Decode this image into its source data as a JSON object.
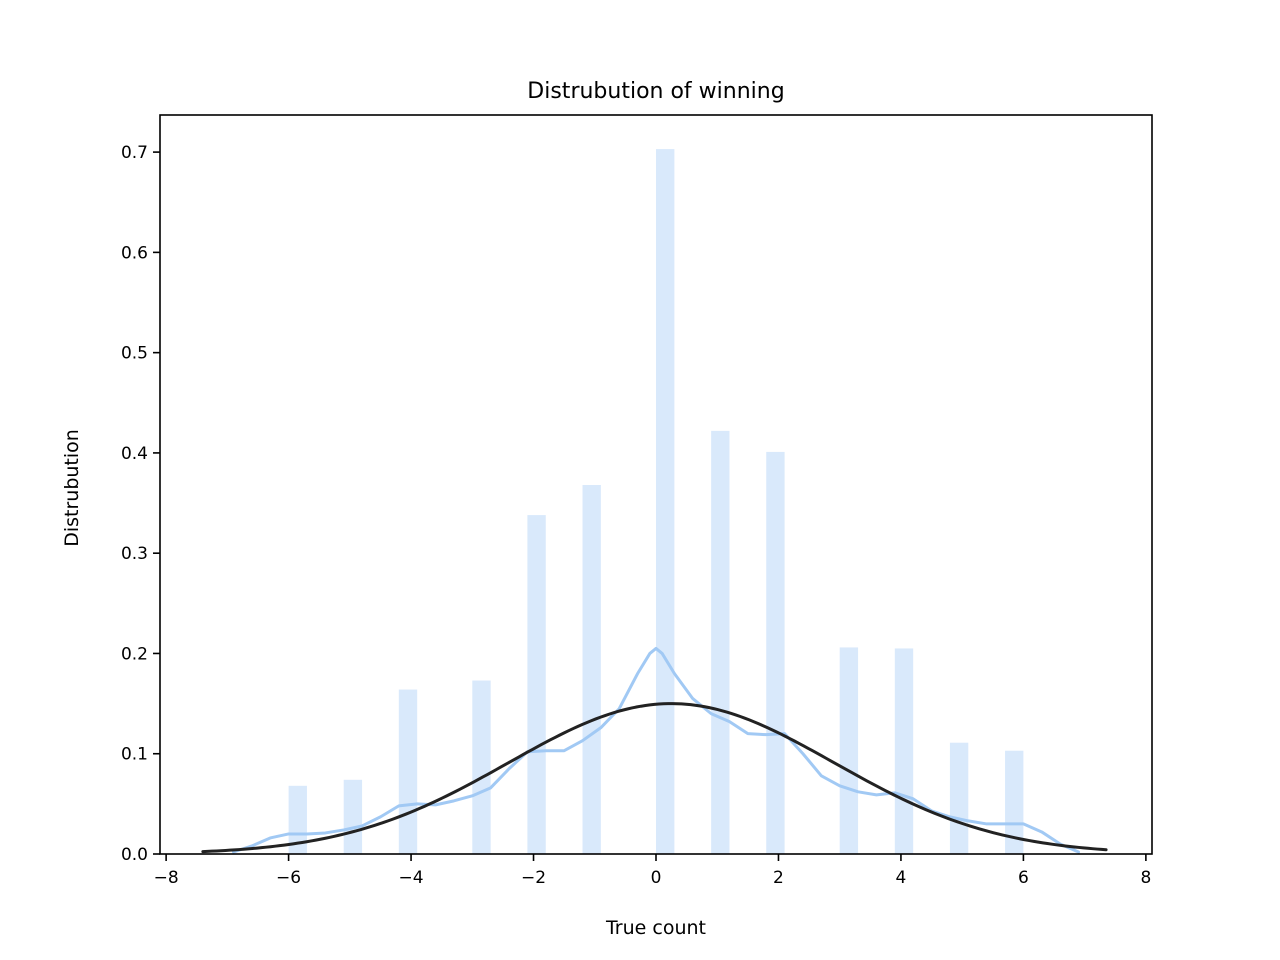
{
  "chart_data": {
    "type": "bar",
    "title": "Distrubution of winning",
    "xlabel": "True count",
    "ylabel": "Distrubution",
    "xlim": [
      -8.1,
      8.1
    ],
    "ylim": [
      0,
      0.737
    ],
    "xticks": [
      -8,
      -6,
      -4,
      -2,
      0,
      2,
      4,
      6,
      8
    ],
    "xtick_labels": [
      "−8",
      "−6",
      "−4",
      "−2",
      "0",
      "2",
      "4",
      "6",
      "8"
    ],
    "yticks": [
      0.0,
      0.1,
      0.2,
      0.3,
      0.4,
      0.5,
      0.6,
      0.7
    ],
    "ytick_labels": [
      "0.0",
      "0.1",
      "0.2",
      "0.3",
      "0.4",
      "0.5",
      "0.6",
      "0.7"
    ],
    "grid": false,
    "legend": "none",
    "histogram": {
      "color": "#a1c9f4",
      "opacity": 0.4,
      "bin_width": 0.3,
      "bins": [
        {
          "x": -5.85,
          "value": 0.068
        },
        {
          "x": -4.95,
          "value": 0.074
        },
        {
          "x": -4.05,
          "value": 0.164
        },
        {
          "x": -2.85,
          "value": 0.173
        },
        {
          "x": -1.95,
          "value": 0.338
        },
        {
          "x": -1.05,
          "value": 0.368
        },
        {
          "x": 0.15,
          "value": 0.703
        },
        {
          "x": 1.05,
          "value": 0.422
        },
        {
          "x": 1.95,
          "value": 0.401
        },
        {
          "x": 3.15,
          "value": 0.206
        },
        {
          "x": 4.05,
          "value": 0.205
        },
        {
          "x": 4.95,
          "value": 0.111
        },
        {
          "x": 5.85,
          "value": 0.103
        }
      ]
    },
    "kde": {
      "color": "#a1c9f4",
      "x": [
        -6.9,
        -6.6,
        -6.3,
        -6.0,
        -5.7,
        -5.4,
        -5.1,
        -4.8,
        -4.5,
        -4.2,
        -3.9,
        -3.6,
        -3.3,
        -3.0,
        -2.7,
        -2.4,
        -2.1,
        -1.8,
        -1.5,
        -1.2,
        -0.9,
        -0.6,
        -0.3,
        -0.1,
        0.0,
        0.1,
        0.3,
        0.6,
        0.9,
        1.2,
        1.5,
        1.8,
        2.1,
        2.4,
        2.7,
        3.0,
        3.3,
        3.6,
        3.9,
        4.2,
        4.5,
        4.8,
        5.1,
        5.4,
        5.7,
        6.0,
        6.3,
        6.6,
        6.9
      ],
      "values": [
        0.002,
        0.008,
        0.016,
        0.02,
        0.02,
        0.021,
        0.024,
        0.028,
        0.037,
        0.048,
        0.05,
        0.049,
        0.053,
        0.058,
        0.066,
        0.085,
        0.102,
        0.103,
        0.103,
        0.113,
        0.126,
        0.145,
        0.18,
        0.2,
        0.205,
        0.2,
        0.18,
        0.155,
        0.14,
        0.132,
        0.12,
        0.119,
        0.12,
        0.1,
        0.078,
        0.068,
        0.062,
        0.059,
        0.061,
        0.055,
        0.043,
        0.037,
        0.033,
        0.03,
        0.03,
        0.03,
        0.022,
        0.01,
        0.002
      ]
    },
    "normal_fit": {
      "color": "#222222",
      "mean": 0.25,
      "std": 2.66,
      "x_range": [
        -7.4,
        7.35
      ]
    }
  }
}
